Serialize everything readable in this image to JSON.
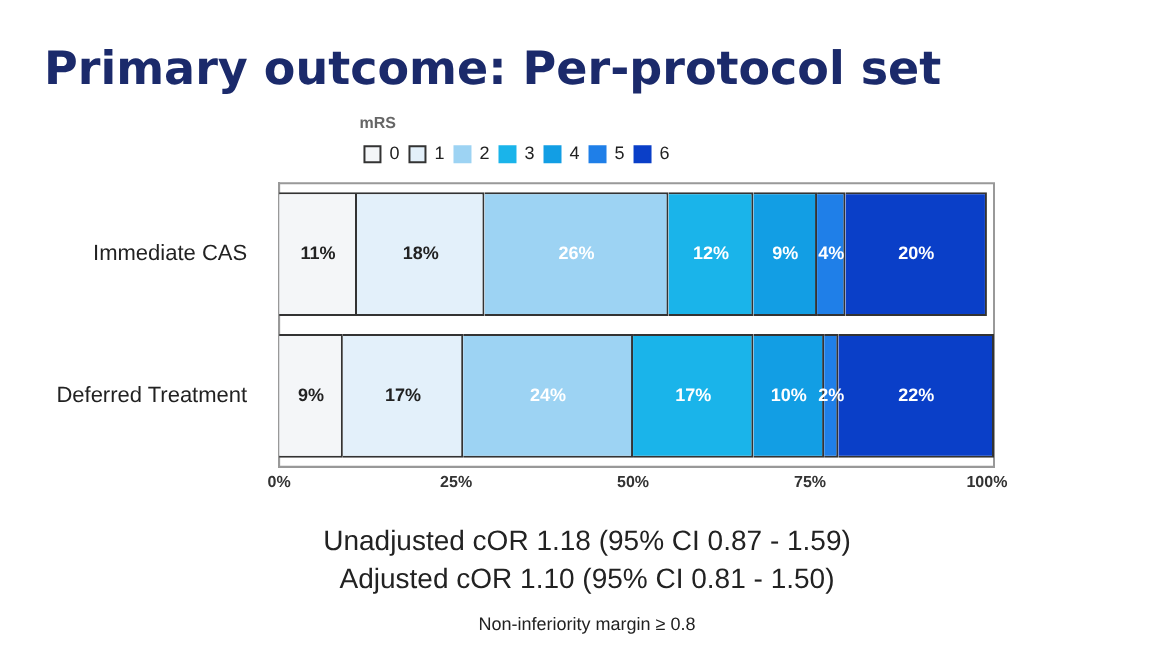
{
  "chart_data": {
    "type": "bar",
    "title": "Primary outcome: Per-protocol set",
    "orientation": "horizontal",
    "stacked": true,
    "categories": [
      "Immediate CAS",
      "Deferred Treatment"
    ],
    "series": [
      {
        "name": "0",
        "color": "#f4f6f8",
        "values": [
          11,
          9
        ],
        "value_labels": [
          "11%",
          "9%"
        ]
      },
      {
        "name": "1",
        "color": "#e3f0fa",
        "values": [
          18,
          17
        ],
        "value_labels": [
          "18%",
          "17%"
        ]
      },
      {
        "name": "2",
        "color": "#9dd3f3",
        "values": [
          26,
          24
        ],
        "value_labels": [
          "26%",
          "24%"
        ]
      },
      {
        "name": "3",
        "color": "#1ab4ea",
        "values": [
          12,
          17
        ],
        "value_labels": [
          "12%",
          "17%"
        ]
      },
      {
        "name": "4",
        "color": "#129ee4",
        "values": [
          9,
          10
        ],
        "value_labels": [
          "9%",
          "10%"
        ]
      },
      {
        "name": "5",
        "color": "#1f7fe8",
        "values": [
          4,
          2
        ],
        "value_labels": [
          "4%",
          "2%"
        ]
      },
      {
        "name": "6",
        "color": "#0a3fc8",
        "values": [
          20,
          22
        ],
        "value_labels": [
          "20%",
          "22%"
        ]
      }
    ],
    "xlim": [
      0,
      101
    ],
    "xticks": [
      {
        "value": 0,
        "label": "0%"
      },
      {
        "value": 25,
        "label": "25%"
      },
      {
        "value": 50,
        "label": "50%"
      },
      {
        "value": 75,
        "label": "75%"
      },
      {
        "value": 100,
        "label": "100%"
      }
    ],
    "legend_title": "mRS",
    "legend": "top",
    "grid": false,
    "annotations": [
      "Unadjusted cOR 1.18 (95% CI 0.87 - 1.59)",
      "Adjusted cOR 1.10 (95% CI 0.81 - 1.50)",
      "Non-inferiority margin ≥ 0.8"
    ]
  }
}
